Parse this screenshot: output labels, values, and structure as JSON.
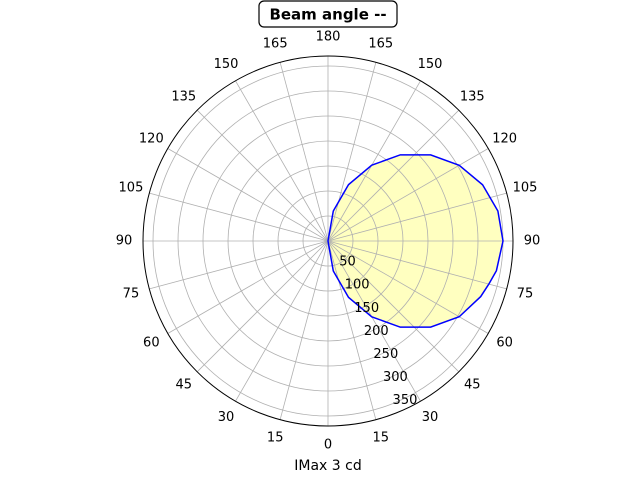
{
  "chart_data": {
    "type": "polar",
    "title": "Beam angle --",
    "xlabel": "IMax 3 cd",
    "x": [
      0,
      10,
      20,
      30,
      40,
      50,
      60,
      70,
      75,
      80,
      90,
      100,
      110,
      120,
      130,
      140,
      150,
      160,
      170,
      180
    ],
    "values": [
      0,
      61,
      120,
      175,
      225,
      268,
      303,
      325,
      333,
      342,
      350,
      345,
      329,
      303,
      268,
      225,
      175,
      120,
      61,
      0
    ],
    "color": "#0000ff",
    "fill_color": "#ffffc0",
    "xlim": [
      0,
      360
    ],
    "xticks": [
      0,
      15,
      30,
      45,
      60,
      75,
      90,
      105,
      120,
      135,
      150,
      165,
      180,
      {
        "value": 195,
        "label": "165"
      },
      {
        "value": 210,
        "label": "150"
      },
      {
        "value": 225,
        "label": "135"
      },
      {
        "value": 240,
        "label": "120"
      },
      {
        "value": 255,
        "label": "105"
      },
      {
        "value": 270,
        "label": "90"
      },
      {
        "value": 285,
        "label": "75"
      },
      {
        "value": 300,
        "label": "60"
      },
      {
        "value": 315,
        "label": "45"
      },
      {
        "value": 330,
        "label": "30"
      },
      {
        "value": 345,
        "label": "15"
      }
    ],
    "ylim": [
      0,
      370
    ],
    "yticks": [
      50,
      100,
      150,
      200,
      250,
      300,
      350
    ],
    "grid": true
  }
}
